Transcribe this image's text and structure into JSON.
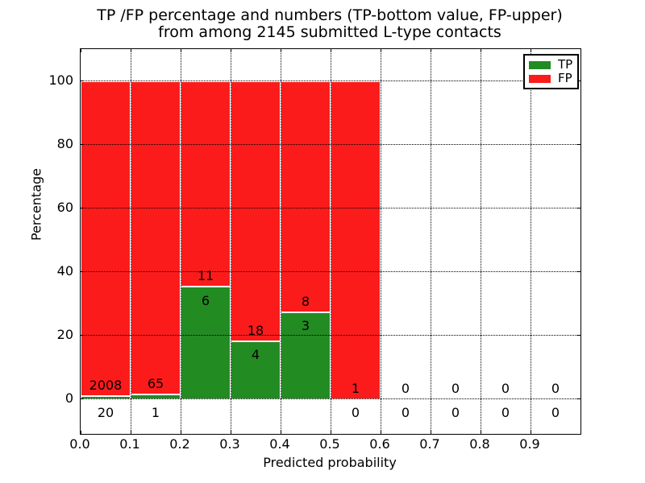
{
  "title": {
    "line1": "TP /FP percentage and numbers (TP-bottom value, FP-upper)",
    "line2": "from among 2145 submitted L-type contacts"
  },
  "chart_data": {
    "type": "bar",
    "stacked": true,
    "title": "TP /FP percentage and numbers (TP-bottom value, FP-upper) from among 2145 submitted L-type contacts",
    "xlabel": "Predicted probability",
    "ylabel": "Percentage",
    "xlim": [
      0.0,
      1.0
    ],
    "ylim": [
      -11,
      110
    ],
    "x_ticks": [
      "0.0",
      "0.1",
      "0.2",
      "0.3",
      "0.4",
      "0.5",
      "0.6",
      "0.7",
      "0.8",
      "0.9"
    ],
    "y_ticks": [
      0,
      20,
      40,
      60,
      80,
      100
    ],
    "grid": "dotted black, drawn above bars",
    "legend_position": "upper right",
    "total_submitted_contacts": 2145,
    "bar_edge_color": "#ffffff",
    "series": [
      {
        "name": "TP",
        "color": "#228b22"
      },
      {
        "name": "FP",
        "color": "#fb1b1b"
      }
    ],
    "bins": [
      {
        "range": "0.0-0.1",
        "x0": 0.0,
        "tp": 20,
        "fp": 2008,
        "tp_pct": 0.99,
        "fp_pct": 99.01,
        "has_bar": true
      },
      {
        "range": "0.1-0.2",
        "x0": 0.1,
        "tp": 1,
        "fp": 65,
        "tp_pct": 1.52,
        "fp_pct": 98.48,
        "has_bar": true
      },
      {
        "range": "0.2-0.3",
        "x0": 0.2,
        "tp": 6,
        "fp": 11,
        "tp_pct": 35.29,
        "fp_pct": 64.71,
        "has_bar": true
      },
      {
        "range": "0.3-0.4",
        "x0": 0.3,
        "tp": 4,
        "fp": 18,
        "tp_pct": 18.18,
        "fp_pct": 81.82,
        "has_bar": true
      },
      {
        "range": "0.4-0.5",
        "x0": 0.4,
        "tp": 3,
        "fp": 8,
        "tp_pct": 27.27,
        "fp_pct": 72.73,
        "has_bar": true
      },
      {
        "range": "0.5-0.6",
        "x0": 0.5,
        "tp": 0,
        "fp": 1,
        "tp_pct": 0,
        "fp_pct": 100,
        "has_bar": true
      },
      {
        "range": "0.6-0.7",
        "x0": 0.6,
        "tp": 0,
        "fp": 0,
        "tp_pct": 0,
        "fp_pct": 0,
        "has_bar": false
      },
      {
        "range": "0.7-0.8",
        "x0": 0.7,
        "tp": 0,
        "fp": 0,
        "tp_pct": 0,
        "fp_pct": 0,
        "has_bar": false
      },
      {
        "range": "0.8-0.9",
        "x0": 0.8,
        "tp": 0,
        "fp": 0,
        "tp_pct": 0,
        "fp_pct": 0,
        "has_bar": false
      },
      {
        "range": "0.9-1.0",
        "x0": 0.9,
        "tp": 0,
        "fp": 0,
        "tp_pct": 0,
        "fp_pct": 0,
        "has_bar": false
      }
    ]
  }
}
